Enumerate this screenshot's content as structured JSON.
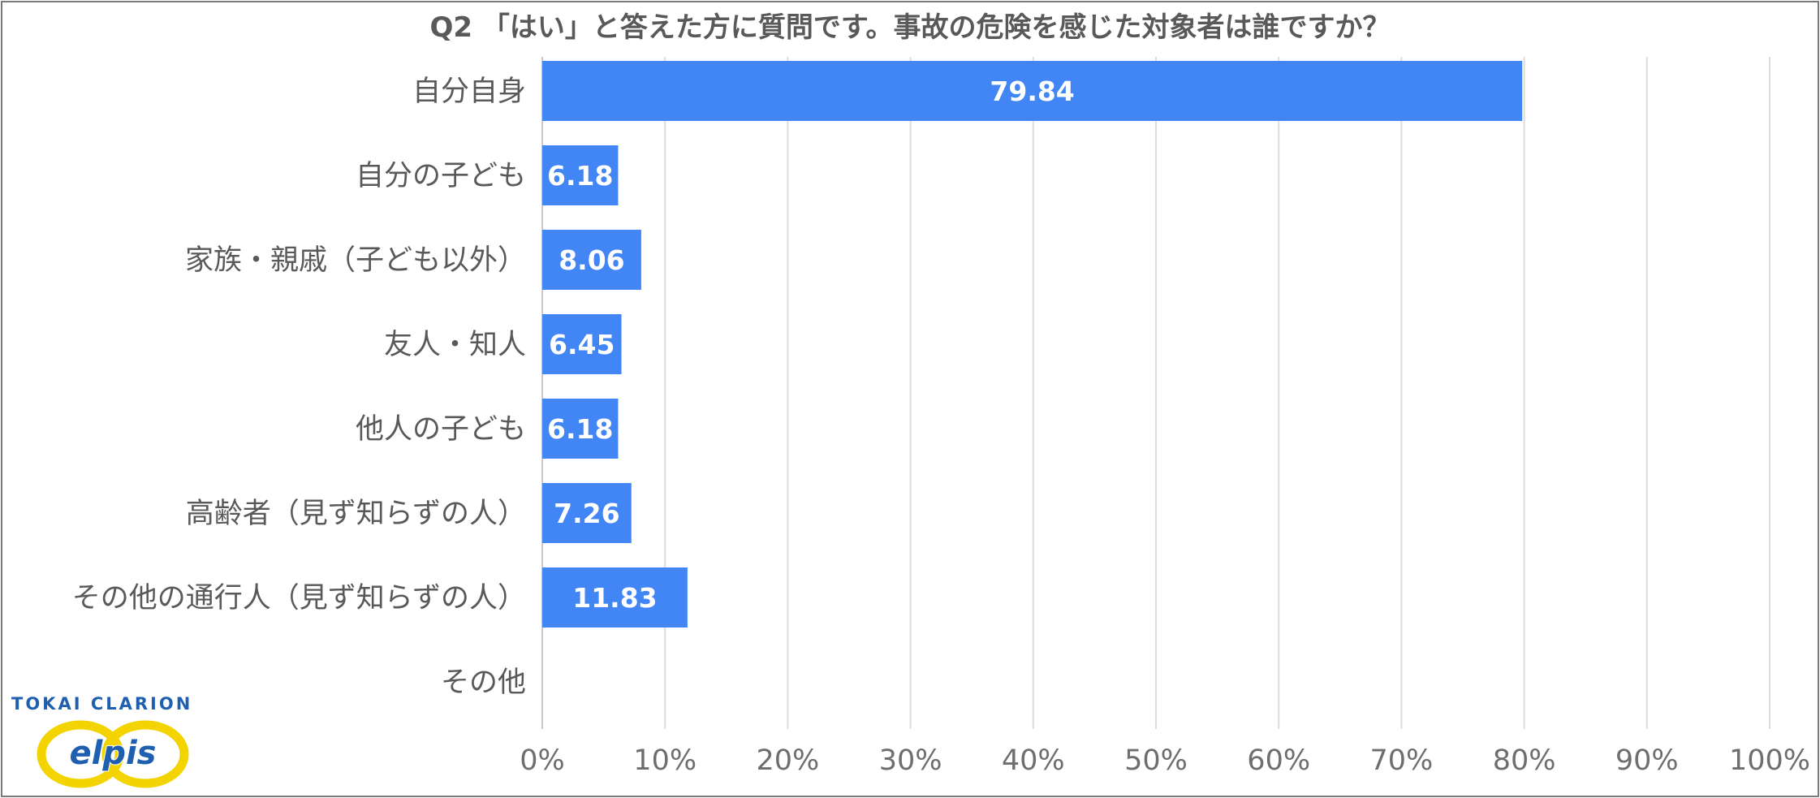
{
  "chart_data": {
    "type": "bar",
    "orientation": "horizontal",
    "title": "Q2 「はい」と答えた方に質問です。事故の危険を感じた対象者は誰ですか？",
    "categories": [
      "自分自身",
      "自分の子ども",
      "家族・親戚（子ども以外）",
      "友人・知人",
      "他人の子ども",
      "高齢者（見ず知らずの人）",
      "その他の通行人（見ず知らずの人）",
      "その他"
    ],
    "values": [
      79.84,
      6.18,
      8.06,
      6.45,
      6.18,
      7.26,
      11.83,
      0
    ],
    "value_labels": [
      "79.84",
      "6.18",
      "8.06",
      "6.45",
      "6.18",
      "7.26",
      "11.83",
      ""
    ],
    "xlim": [
      0,
      100
    ],
    "xticks": [
      0,
      10,
      20,
      30,
      40,
      50,
      60,
      70,
      80,
      90,
      100
    ],
    "xtick_labels": [
      "0%",
      "10%",
      "20%",
      "30%",
      "40%",
      "50%",
      "60%",
      "70%",
      "80%",
      "90%",
      "100%"
    ],
    "grid": true,
    "legend": "none",
    "bar_color": "#4285f4",
    "xlabel": "",
    "ylabel": ""
  },
  "logo": {
    "company": "TOKAI CLARION",
    "brand": "elpis",
    "ring_color": "#f3d300",
    "text_color": "#1f5fb0"
  }
}
